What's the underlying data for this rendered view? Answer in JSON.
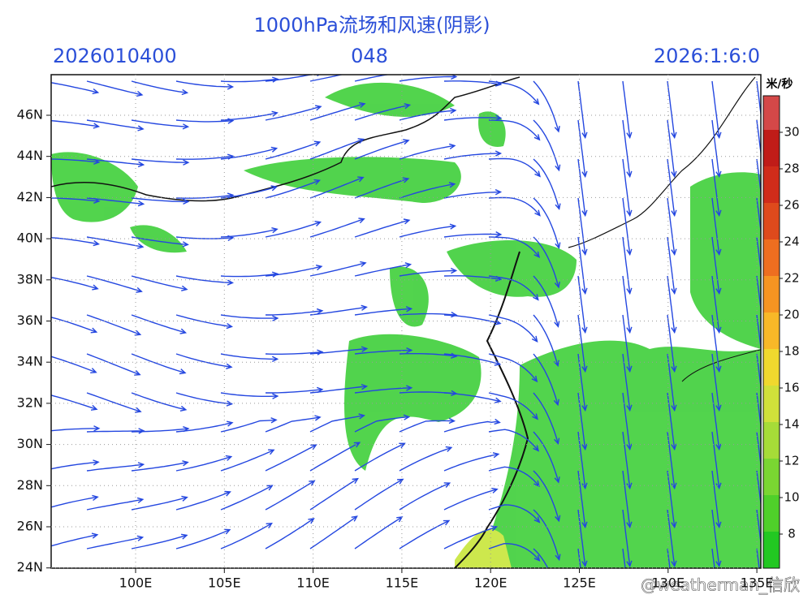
{
  "header": {
    "title": "1000hPa流场和风速(阴影)",
    "init": "2026010400",
    "lead": "048",
    "valid": "2026:1:6:0"
  },
  "axes": {
    "y_labels": [
      "46N",
      "44N",
      "42N",
      "40N",
      "38N",
      "36N",
      "34N",
      "32N",
      "30N",
      "28N",
      "26N",
      "24N"
    ],
    "x_labels": [
      "100E",
      "105E",
      "110E",
      "115E",
      "120E",
      "125E",
      "130E",
      "135E"
    ]
  },
  "colorbar": {
    "unit": "米/秒",
    "labels": [
      8,
      10,
      12,
      14,
      16,
      18,
      20,
      22,
      24,
      26,
      28,
      30
    ]
  },
  "watermark": "@weatherman_信欣"
}
